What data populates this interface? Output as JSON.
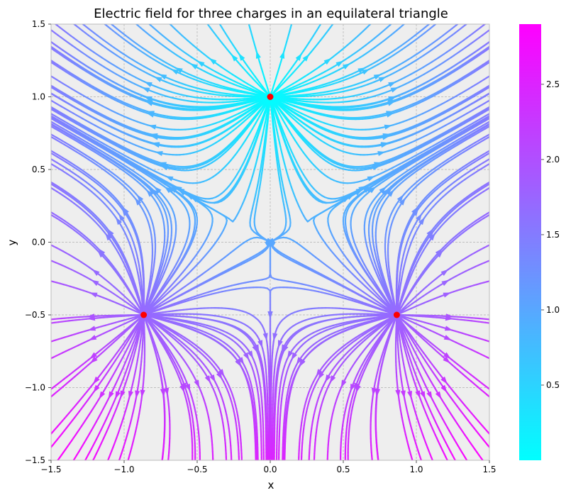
{
  "chart_data": {
    "type": "streamplot",
    "title": "Electric field for three charges in an equilateral triangle",
    "xlabel": "x",
    "ylabel": "y",
    "xlim": [
      -1.5,
      1.5
    ],
    "ylim": [
      -1.5,
      1.5
    ],
    "x_ticks": [
      -1.5,
      -1.0,
      -0.5,
      0.0,
      0.5,
      1.0,
      1.5
    ],
    "y_ticks": [
      -1.5,
      -1.0,
      -0.5,
      0.0,
      0.5,
      1.0,
      1.5
    ],
    "x_tick_labels": [
      "−1.5",
      "−1.0",
      "−0.5",
      "0.0",
      "0.5",
      "1.0",
      "1.5"
    ],
    "y_tick_labels": [
      "−1.5",
      "−1.0",
      "−0.5",
      "0.0",
      "0.5",
      "1.0",
      "1.5"
    ],
    "grid": true,
    "charges": [
      {
        "x": 0.0,
        "y": 1.0,
        "q": 1
      },
      {
        "x": -0.866,
        "y": -0.5,
        "q": 1
      },
      {
        "x": 0.866,
        "y": -0.5,
        "q": 1
      }
    ],
    "colorbar": {
      "colormap": "cool",
      "min": 0.0,
      "max": 2.9,
      "ticks": [
        0.5,
        1.0,
        1.5,
        2.0,
        2.5
      ],
      "tick_labels": [
        "0.5",
        "1.0",
        "1.5",
        "2.0",
        "2.5"
      ]
    },
    "colors": {
      "axes_background": "#eeeeee",
      "grid": "#b0b0b0",
      "charge_marker": "#ff0000"
    }
  }
}
